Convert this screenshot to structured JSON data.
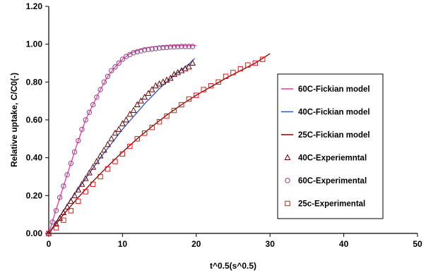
{
  "chart_data": {
    "type": "scatter",
    "title": "",
    "xlabel": "t^0.5(s^0.5)",
    "ylabel": "Relative uptake, C/C0(-)",
    "xlim": [
      0,
      50
    ],
    "ylim": [
      0,
      1.2
    ],
    "xticks": [
      "0",
      "10",
      "20",
      "30",
      "40",
      "50"
    ],
    "yticks": [
      "0.00",
      "0.20",
      "0.40",
      "0.60",
      "0.80",
      "1.00",
      "1.20"
    ],
    "grid": false,
    "legend_position": "right",
    "series": [
      {
        "name": "60C-Fickian model",
        "kind": "line",
        "color": "#ff3399",
        "x": [
          0,
          0.5,
          1,
          1.5,
          2,
          2.5,
          3,
          3.5,
          4,
          5,
          6,
          7,
          8,
          9,
          10,
          11,
          12,
          13,
          14,
          15,
          16,
          17,
          18,
          19,
          20
        ],
        "y": [
          0,
          0.063,
          0.126,
          0.188,
          0.25,
          0.31,
          0.37,
          0.43,
          0.49,
          0.6,
          0.68,
          0.76,
          0.83,
          0.88,
          0.92,
          0.95,
          0.967,
          0.978,
          0.985,
          0.989,
          0.991,
          0.992,
          0.993,
          0.993,
          0.993
        ]
      },
      {
        "name": "40C-Fickian model",
        "kind": "line",
        "color": "#3355bb",
        "x": [
          0,
          1,
          2,
          3,
          4,
          5,
          6,
          7,
          8,
          9,
          10,
          11,
          12,
          13,
          14,
          15,
          16,
          17,
          18,
          19,
          19.8
        ],
        "y": [
          0,
          0.06,
          0.12,
          0.18,
          0.235,
          0.29,
          0.345,
          0.4,
          0.45,
          0.5,
          0.55,
          0.595,
          0.64,
          0.685,
          0.725,
          0.765,
          0.8,
          0.835,
          0.865,
          0.895,
          0.925
        ]
      },
      {
        "name": "25C-Fickian model",
        "kind": "line",
        "color": "#880000",
        "x": [
          0,
          2,
          4,
          6,
          8,
          10,
          12,
          14,
          16,
          18,
          20,
          22,
          24,
          26,
          28,
          30
        ],
        "y": [
          0,
          0.1,
          0.19,
          0.275,
          0.355,
          0.43,
          0.5,
          0.565,
          0.625,
          0.68,
          0.73,
          0.775,
          0.82,
          0.86,
          0.9,
          0.95
        ]
      },
      {
        "name": "40C-Experiemntal",
        "kind": "marker",
        "marker": "triangle",
        "color": "#660000",
        "x": [
          0,
          1,
          1.5,
          2,
          2.5,
          3,
          3.5,
          4,
          4.5,
          5,
          5.5,
          6,
          6.5,
          7,
          7.5,
          8,
          8.5,
          9,
          9.5,
          10,
          10.5,
          11,
          11.5,
          12,
          12.5,
          13,
          13.5,
          14,
          14.5,
          15,
          15.5,
          16,
          16.5,
          17,
          17.5,
          18,
          18.5,
          19,
          19.5
        ],
        "y": [
          0,
          0.05,
          0.08,
          0.11,
          0.14,
          0.17,
          0.2,
          0.23,
          0.26,
          0.29,
          0.32,
          0.35,
          0.38,
          0.41,
          0.44,
          0.47,
          0.5,
          0.53,
          0.55,
          0.58,
          0.6,
          0.63,
          0.65,
          0.68,
          0.7,
          0.72,
          0.74,
          0.76,
          0.78,
          0.79,
          0.8,
          0.81,
          0.82,
          0.84,
          0.85,
          0.86,
          0.87,
          0.88,
          0.9
        ]
      },
      {
        "name": "60C-Experimental",
        "kind": "marker",
        "marker": "circle",
        "color": "#884488",
        "x": [
          0,
          0.5,
          1,
          1.5,
          2,
          2.5,
          3,
          3.5,
          4,
          4.5,
          5,
          5.5,
          6,
          6.5,
          7,
          7.5,
          8,
          8.5,
          9,
          9.5,
          10,
          10.5,
          11,
          11.5,
          12,
          12.5,
          13,
          13.5,
          14,
          14.5,
          15,
          15.5,
          16,
          16.5,
          17,
          17.5,
          18,
          18.5,
          19,
          19.5
        ],
        "y": [
          0,
          0.06,
          0.12,
          0.19,
          0.25,
          0.31,
          0.37,
          0.43,
          0.49,
          0.55,
          0.6,
          0.64,
          0.68,
          0.72,
          0.76,
          0.8,
          0.83,
          0.86,
          0.88,
          0.9,
          0.92,
          0.935,
          0.945,
          0.955,
          0.96,
          0.965,
          0.97,
          0.972,
          0.975,
          0.977,
          0.98,
          0.982,
          0.983,
          0.985,
          0.986,
          0.987,
          0.988,
          0.988,
          0.988,
          0.988
        ]
      },
      {
        "name": "25c-Experimental",
        "kind": "marker",
        "marker": "square",
        "color": "#ee1111",
        "x": [
          0,
          1,
          2,
          3,
          4,
          5,
          6,
          7,
          8,
          9,
          10,
          11,
          12,
          13,
          14,
          15,
          16,
          17,
          18,
          19,
          20,
          21,
          22,
          23,
          24,
          25,
          26,
          27,
          28,
          29
        ],
        "y": [
          0,
          0.03,
          0.07,
          0.12,
          0.17,
          0.22,
          0.26,
          0.3,
          0.34,
          0.38,
          0.42,
          0.46,
          0.5,
          0.53,
          0.56,
          0.59,
          0.62,
          0.65,
          0.68,
          0.71,
          0.73,
          0.76,
          0.78,
          0.8,
          0.83,
          0.85,
          0.87,
          0.89,
          0.9,
          0.92
        ]
      }
    ]
  }
}
